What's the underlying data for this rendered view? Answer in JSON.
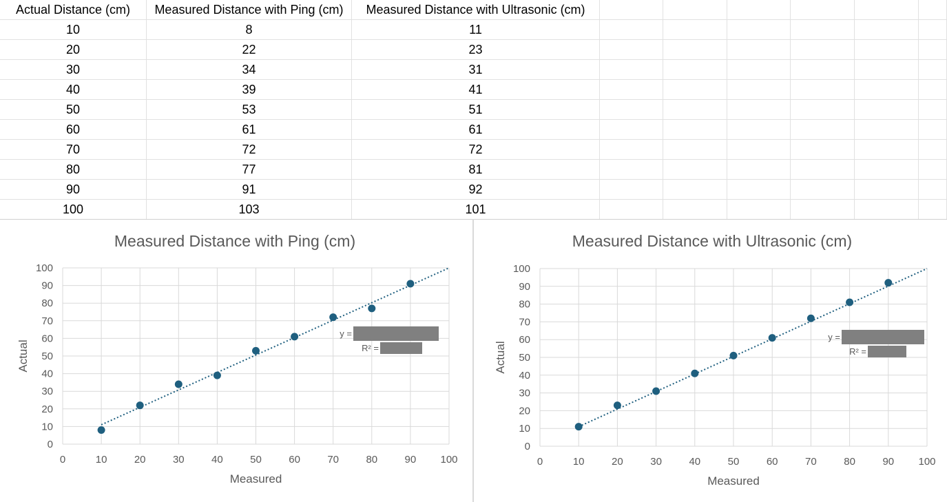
{
  "table": {
    "headers": [
      "Actual Distance (cm)",
      "Measured Distance with Ping (cm)",
      "Measured Distance with Ultrasonic (cm)"
    ],
    "rows": [
      [
        "10",
        "8",
        "11"
      ],
      [
        "20",
        "22",
        "23"
      ],
      [
        "30",
        "34",
        "31"
      ],
      [
        "40",
        "39",
        "41"
      ],
      [
        "50",
        "53",
        "51"
      ],
      [
        "60",
        "61",
        "61"
      ],
      [
        "70",
        "72",
        "72"
      ],
      [
        "80",
        "77",
        "81"
      ],
      [
        "90",
        "91",
        "92"
      ],
      [
        "100",
        "103",
        "101"
      ]
    ]
  },
  "colors": {
    "marker": "#1f5f7f",
    "trendline": "#1f5f7f",
    "grid": "#d9d9d9",
    "redaction": "#808080",
    "title_text": "#595959",
    "axis_text": "#595959"
  },
  "chart_data": [
    {
      "type": "scatter",
      "title": "Measured Distance with Ping (cm)",
      "xlabel": "Measured",
      "ylabel": "Actual",
      "xlim": [
        0,
        100
      ],
      "ylim": [
        0,
        100
      ],
      "xticks": [
        "0",
        "10",
        "20",
        "30",
        "40",
        "50",
        "60",
        "70",
        "80",
        "90",
        "100"
      ],
      "yticks": [
        "0",
        "10",
        "20",
        "30",
        "40",
        "50",
        "60",
        "70",
        "80",
        "90",
        "100"
      ],
      "grid": true,
      "trendline": "linear, dotted",
      "x": [
        10,
        20,
        30,
        40,
        50,
        60,
        70,
        80,
        90
      ],
      "y": [
        8,
        22,
        34,
        39,
        53,
        61,
        72,
        77,
        91
      ],
      "trend": [
        [
          10,
          11
        ],
        [
          100,
          100
        ]
      ],
      "equation_label": "y =",
      "r2_label": "R² ="
    },
    {
      "type": "scatter",
      "title": "Measured Distance with Ultrasonic (cm)",
      "xlabel": "Measured",
      "ylabel": "Actual",
      "xlim": [
        0,
        100
      ],
      "ylim": [
        0,
        100
      ],
      "xticks": [
        "0",
        "10",
        "20",
        "30",
        "40",
        "50",
        "60",
        "70",
        "80",
        "90",
        "100"
      ],
      "yticks": [
        "0",
        "10",
        "20",
        "30",
        "40",
        "50",
        "60",
        "70",
        "80",
        "90",
        "100"
      ],
      "grid": true,
      "trendline": "linear, dotted",
      "x": [
        10,
        20,
        30,
        40,
        50,
        60,
        70,
        80,
        90
      ],
      "y": [
        11,
        23,
        31,
        41,
        51,
        61,
        72,
        81,
        92
      ],
      "trend": [
        [
          10,
          11
        ],
        [
          100,
          100
        ]
      ],
      "equation_label": "y =",
      "r2_label": "R² ="
    }
  ]
}
